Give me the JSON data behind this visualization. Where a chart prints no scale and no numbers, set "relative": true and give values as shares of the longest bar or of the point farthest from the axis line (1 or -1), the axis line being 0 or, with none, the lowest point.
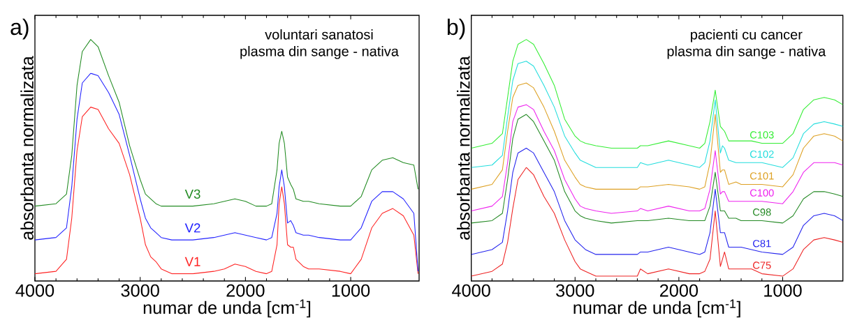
{
  "chart_data": [
    {
      "type": "line",
      "title": "voluntari sanatosi",
      "subtitle": "plasma din sange - nativa",
      "xlabel": "numar de unda [cm$^{-1}$]",
      "ylabel": "absorbanta normalizata",
      "annotations": [
        "a)"
      ],
      "relative": true,
      "xlim": [
        4000,
        350
      ],
      "xticks": [
        4000,
        3000,
        2000,
        1000
      ],
      "x": [
        4000,
        3800,
        3700,
        3650,
        3600,
        3550,
        3470,
        3400,
        3300,
        3200,
        3100,
        3000,
        2950,
        2900,
        2850,
        2800,
        2700,
        2500,
        2300,
        2200,
        2100,
        2000,
        1900,
        1800,
        1750,
        1700,
        1680,
        1655,
        1630,
        1600,
        1570,
        1545,
        1520,
        1450,
        1400,
        1300,
        1100,
        1000,
        900,
        800,
        700,
        600,
        500,
        400,
        360
      ],
      "series": [
        {
          "name": "V1",
          "color": "#ff2222",
          "values": [
            0.03,
            0.04,
            0.09,
            0.26,
            0.54,
            0.68,
            0.72,
            0.71,
            0.63,
            0.57,
            0.44,
            0.26,
            0.15,
            0.1,
            0.08,
            0.05,
            0.03,
            0.03,
            0.04,
            0.05,
            0.07,
            0.06,
            0.04,
            0.03,
            0.04,
            0.15,
            0.32,
            0.39,
            0.32,
            0.15,
            0.14,
            0.14,
            0.09,
            0.06,
            0.05,
            0.05,
            0.04,
            0.03,
            0.09,
            0.22,
            0.28,
            0.3,
            0.27,
            0.19,
            0.03
          ]
        },
        {
          "name": "V2",
          "color": "#2222ff",
          "values": [
            0.17,
            0.18,
            0.22,
            0.39,
            0.67,
            0.82,
            0.86,
            0.85,
            0.78,
            0.69,
            0.52,
            0.34,
            0.26,
            0.22,
            0.2,
            0.18,
            0.17,
            0.17,
            0.18,
            0.19,
            0.2,
            0.19,
            0.18,
            0.17,
            0.18,
            0.28,
            0.39,
            0.46,
            0.39,
            0.24,
            0.25,
            0.23,
            0.2,
            0.19,
            0.19,
            0.18,
            0.17,
            0.17,
            0.22,
            0.33,
            0.37,
            0.37,
            0.34,
            0.28,
            0.04
          ]
        },
        {
          "name": "V3",
          "color": "#228b22",
          "values": [
            0.31,
            0.32,
            0.36,
            0.52,
            0.81,
            0.95,
            1,
            0.97,
            0.85,
            0.74,
            0.56,
            0.42,
            0.36,
            0.34,
            0.32,
            0.31,
            0.31,
            0.31,
            0.32,
            0.33,
            0.34,
            0.33,
            0.31,
            0.31,
            0.32,
            0.46,
            0.57,
            0.62,
            0.57,
            0.43,
            0.4,
            0.38,
            0.34,
            0.33,
            0.33,
            0.32,
            0.31,
            0.31,
            0.35,
            0.46,
            0.5,
            0.51,
            0.49,
            0.48,
            0.38
          ]
        }
      ]
    },
    {
      "type": "line",
      "title": "pacienti cu cancer",
      "subtitle": "plasma din sange - nativa",
      "xlabel": "numar de unda [cm$^{-1}$]",
      "ylabel": "absorbanta normalizata",
      "annotations": [
        "b)"
      ],
      "relative": true,
      "xlim": [
        4000,
        420
      ],
      "xticks": [
        4000,
        3000,
        2000,
        1000
      ],
      "x": [
        4000,
        3800,
        3700,
        3650,
        3600,
        3550,
        3470,
        3400,
        3300,
        3200,
        3100,
        3000,
        2950,
        2900,
        2800,
        2650,
        2400,
        2370,
        2300,
        2100,
        1900,
        1800,
        1750,
        1700,
        1650,
        1600,
        1580,
        1560,
        1520,
        1450,
        1400,
        1300,
        1200,
        1000,
        900,
        800,
        700,
        600,
        500,
        420
      ],
      "series": [
        {
          "name": "C75",
          "color": "#ee2222",
          "values": [
            0.02,
            0.04,
            0.07,
            0.16,
            0.3,
            0.42,
            0.47,
            0.44,
            0.35,
            0.28,
            0.17,
            0.08,
            0.05,
            0.04,
            0.02,
            0.02,
            0.02,
            0.05,
            0.03,
            0.05,
            0.03,
            0.03,
            0.04,
            0.09,
            0.29,
            0.06,
            0.09,
            0.12,
            0.05,
            0.05,
            0.05,
            0.05,
            0.03,
            0.02,
            0.05,
            0.13,
            0.17,
            0.18,
            0.17,
            0.16
          ]
        },
        {
          "name": "C81",
          "color": "#2222ee",
          "values": [
            0.11,
            0.13,
            0.16,
            0.29,
            0.45,
            0.53,
            0.55,
            0.53,
            0.45,
            0.37,
            0.25,
            0.17,
            0.15,
            0.13,
            0.11,
            0.11,
            0.11,
            0.12,
            0.12,
            0.14,
            0.12,
            0.11,
            0.12,
            0.2,
            0.38,
            0.2,
            0.2,
            0.2,
            0.14,
            0.14,
            0.14,
            0.13,
            0.12,
            0.11,
            0.14,
            0.23,
            0.27,
            0.28,
            0.27,
            0.25
          ]
        },
        {
          "name": "C98",
          "color": "#228822",
          "values": [
            0.24,
            0.25,
            0.28,
            0.42,
            0.59,
            0.67,
            0.69,
            0.66,
            0.58,
            0.5,
            0.37,
            0.29,
            0.27,
            0.26,
            0.25,
            0.24,
            0.25,
            0.25,
            0.25,
            0.26,
            0.25,
            0.25,
            0.25,
            0.31,
            0.45,
            0.29,
            0.29,
            0.29,
            0.26,
            0.26,
            0.25,
            0.25,
            0.25,
            0.24,
            0.27,
            0.34,
            0.37,
            0.37,
            0.36,
            0.35
          ]
        },
        {
          "name": "C100",
          "color": "#ee22ee",
          "values": [
            0.29,
            0.31,
            0.35,
            0.49,
            0.66,
            0.72,
            0.73,
            0.71,
            0.62,
            0.54,
            0.42,
            0.34,
            0.31,
            0.3,
            0.29,
            0.28,
            0.29,
            0.3,
            0.29,
            0.31,
            0.29,
            0.29,
            0.3,
            0.38,
            0.54,
            0.36,
            0.37,
            0.37,
            0.33,
            0.33,
            0.33,
            0.33,
            0.33,
            0.32,
            0.37,
            0.45,
            0.49,
            0.49,
            0.49,
            0.48
          ]
        },
        {
          "name": "C101",
          "color": "#dda022",
          "values": [
            0.38,
            0.4,
            0.46,
            0.62,
            0.76,
            0.81,
            0.82,
            0.8,
            0.72,
            0.62,
            0.5,
            0.43,
            0.4,
            0.39,
            0.38,
            0.38,
            0.38,
            0.39,
            0.39,
            0.4,
            0.39,
            0.38,
            0.39,
            0.49,
            0.69,
            0.45,
            0.46,
            0.46,
            0.4,
            0.41,
            0.4,
            0.4,
            0.4,
            0.39,
            0.44,
            0.55,
            0.6,
            0.61,
            0.6,
            0.58
          ]
        },
        {
          "name": "C102",
          "color": "#22dddd",
          "values": [
            0.47,
            0.48,
            0.52,
            0.68,
            0.83,
            0.9,
            0.91,
            0.89,
            0.81,
            0.72,
            0.6,
            0.53,
            0.5,
            0.49,
            0.47,
            0.47,
            0.47,
            0.49,
            0.48,
            0.5,
            0.48,
            0.47,
            0.49,
            0.58,
            0.75,
            0.53,
            0.56,
            0.55,
            0.5,
            0.49,
            0.49,
            0.49,
            0.49,
            0.47,
            0.51,
            0.61,
            0.65,
            0.66,
            0.65,
            0.64
          ]
        },
        {
          "name": "C103",
          "color": "#33ee33",
          "values": [
            0.55,
            0.57,
            0.61,
            0.76,
            0.91,
            0.98,
            1,
            0.98,
            0.9,
            0.81,
            0.67,
            0.6,
            0.58,
            0.57,
            0.56,
            0.55,
            0.55,
            0.56,
            0.56,
            0.58,
            0.56,
            0.55,
            0.57,
            0.66,
            0.79,
            0.64,
            0.63,
            0.62,
            0.58,
            0.58,
            0.58,
            0.58,
            0.57,
            0.57,
            0.61,
            0.71,
            0.75,
            0.76,
            0.75,
            0.73
          ]
        }
      ]
    }
  ]
}
